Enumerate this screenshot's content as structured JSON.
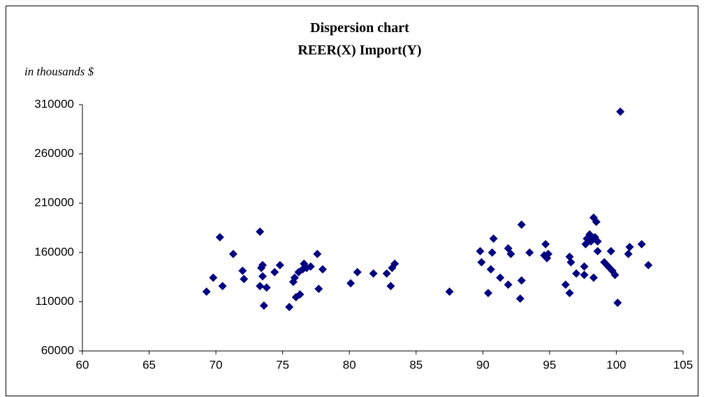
{
  "chart_data": {
    "type": "scatter",
    "title": "Dispersion chart",
    "subtitle": "REER(X) Import(Y)",
    "y_label": "in thousands $",
    "color": "#000080",
    "x": [
      69.3,
      69.8,
      70.3,
      70.5,
      71.3,
      72.0,
      72.1,
      73.3,
      73.3,
      73.4,
      73.5,
      73.5,
      73.6,
      73.8,
      74.4,
      74.8,
      75.5,
      75.8,
      75.9,
      76.0,
      76.2,
      76.3,
      76.5,
      76.6,
      76.8,
      77.1,
      77.6,
      77.7,
      78.0,
      80.1,
      80.6,
      81.8,
      82.8,
      83.1,
      83.2,
      83.4,
      87.5,
      89.8,
      89.9,
      90.4,
      90.6,
      90.7,
      90.8,
      91.3,
      91.9,
      91.9,
      92.1,
      92.8,
      92.9,
      92.9,
      93.5,
      94.6,
      94.7,
      94.8,
      94.9,
      96.2,
      96.5,
      96.5,
      96.6,
      97.0,
      97.6,
      97.6,
      97.7,
      97.8,
      98.0,
      98.1,
      98.3,
      98.3,
      98.4,
      98.5,
      98.6,
      98.6,
      99.1,
      99.4,
      99.6,
      99.7,
      99.9,
      100.1,
      100.3,
      100.9,
      101.0,
      101.9,
      102.4
    ],
    "values": [
      120200,
      134400,
      175400,
      125900,
      158400,
      141400,
      133000,
      181100,
      125900,
      144300,
      135800,
      147100,
      106000,
      124400,
      140000,
      147100,
      104600,
      130100,
      134400,
      114500,
      140000,
      117400,
      142900,
      148500,
      144300,
      145700,
      158400,
      123000,
      142900,
      128700,
      140000,
      138600,
      138600,
      125900,
      144300,
      148500,
      120200,
      161300,
      150000,
      118800,
      142900,
      159900,
      174000,
      134400,
      164100,
      127300,
      158400,
      113100,
      131500,
      188200,
      159900,
      157000,
      168400,
      154200,
      158400,
      127300,
      155600,
      118800,
      150000,
      138600,
      145700,
      137200,
      168400,
      174000,
      178300,
      171200,
      134400,
      195300,
      175400,
      191000,
      171200,
      161300,
      150000,
      145700,
      161300,
      141400,
      137200,
      108900,
      302900,
      158400,
      165500,
      168400,
      147100
    ],
    "xlim": [
      60,
      105
    ],
    "xticks": [
      60,
      65,
      70,
      75,
      80,
      85,
      90,
      95,
      100,
      105
    ],
    "ylim": [
      60000,
      310000
    ],
    "yticks": [
      60000,
      110000,
      160000,
      210000,
      260000,
      310000
    ]
  }
}
